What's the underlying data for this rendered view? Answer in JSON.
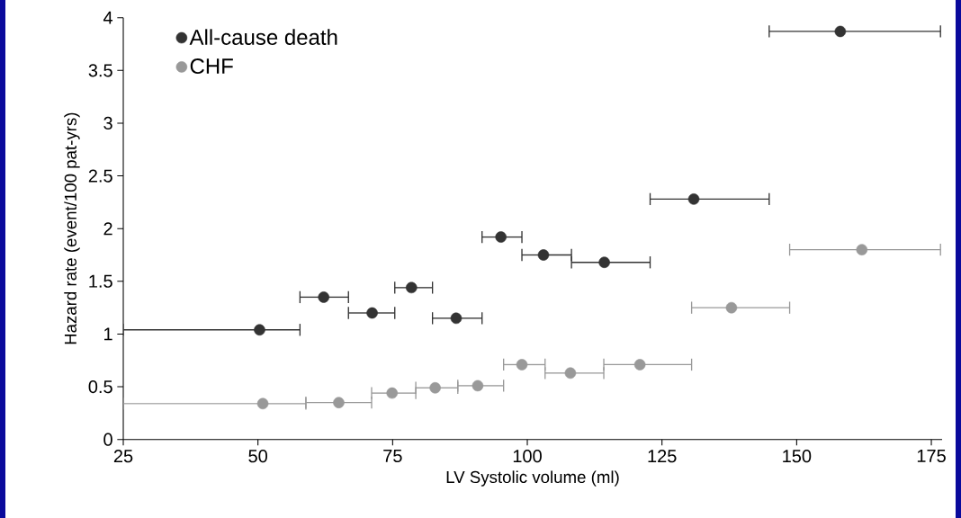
{
  "chart_data": {
    "type": "scatter",
    "xlabel": "LV Systolic volume (ml)",
    "ylabel": "Hazard rate (event/100 pat-yrs)",
    "xlim": [
      25,
      177
    ],
    "xticks": [
      25,
      50,
      75,
      100,
      125,
      150,
      175
    ],
    "ylim": [
      0,
      4
    ],
    "yticks": [
      0,
      0.5,
      1,
      1.5,
      2,
      2.5,
      3,
      3.5,
      4
    ],
    "legend": "top left",
    "marker": "circle",
    "grid": false,
    "series": [
      {
        "name": "All-cause death",
        "color": "#333333",
        "x": [
          50.3,
          62.2,
          71.2,
          78.5,
          86.8,
          95.1,
          103.0,
          114.3,
          130.9,
          158.1
        ],
        "values": [
          1.04,
          1.35,
          1.2,
          1.44,
          1.15,
          1.92,
          1.75,
          1.68,
          2.28,
          3.87
        ],
        "xerrors": [
          [
            25,
            57.8
          ],
          [
            57.8,
            66.8
          ],
          [
            66.8,
            75.4
          ],
          [
            75.4,
            82.4
          ],
          [
            82.4,
            91.6
          ],
          [
            91.6,
            99.0
          ],
          [
            99.0,
            108.2
          ],
          [
            108.2,
            122.8
          ],
          [
            122.8,
            144.9
          ],
          [
            144.9,
            176.7
          ]
        ]
      },
      {
        "name": "CHF",
        "color": "#999999",
        "x": [
          50.9,
          65.0,
          74.9,
          82.9,
          90.8,
          99.0,
          108.0,
          120.9,
          137.9,
          162.1
        ],
        "values": [
          0.34,
          0.35,
          0.44,
          0.49,
          0.51,
          0.71,
          0.63,
          0.71,
          1.25,
          1.8
        ],
        "xerrors": [
          [
            25,
            58.9
          ],
          [
            58.9,
            71.1
          ],
          [
            71.1,
            79.3
          ],
          [
            79.3,
            87.1
          ],
          [
            87.1,
            95.6
          ],
          [
            95.6,
            103.3
          ],
          [
            103.3,
            114.2
          ],
          [
            114.2,
            130.5
          ],
          [
            130.5,
            148.7
          ],
          [
            148.7,
            176.7
          ]
        ]
      }
    ]
  }
}
